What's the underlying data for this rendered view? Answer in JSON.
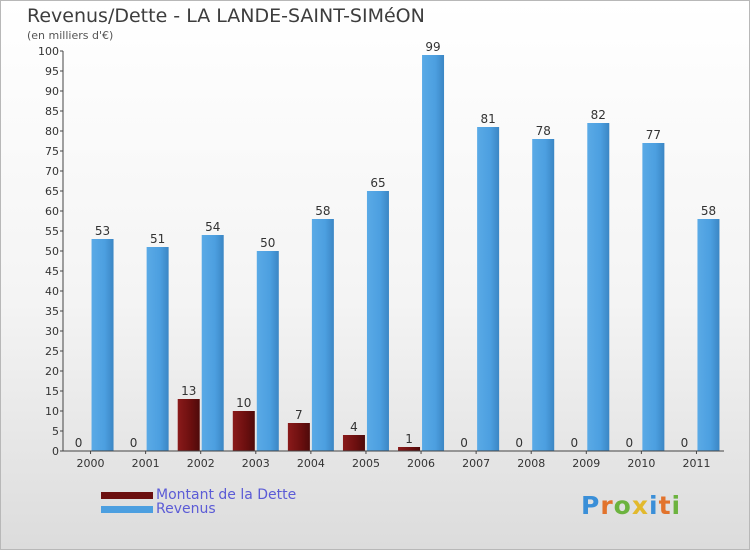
{
  "title": "Revenus/Dette - LA LANDE-SAINT-SIMéON",
  "subtitle": "(en milliers d'€)",
  "brand": "Proxiti",
  "colors": {
    "dette": "#6b0f0f",
    "revenus": "#4c9fe0",
    "axis": "#444444",
    "text": "#333333",
    "legend_text": "#5b5bd6"
  },
  "legend": {
    "dette_label": "Montant de la Dette",
    "revenus_label": "Revenus"
  },
  "chart_data": {
    "type": "bar",
    "title": "Revenus/Dette - LA LANDE-SAINT-SIMéON",
    "ylabel": "(en milliers d'€)",
    "xlabel": "",
    "ylim": [
      0,
      100
    ],
    "yticks": [
      0,
      5,
      10,
      15,
      20,
      25,
      30,
      35,
      40,
      45,
      50,
      55,
      60,
      65,
      70,
      75,
      80,
      85,
      90,
      95,
      100
    ],
    "categories": [
      "2000",
      "2001",
      "2002",
      "2003",
      "2004",
      "2005",
      "2006",
      "2007",
      "2008",
      "2009",
      "2010",
      "2011"
    ],
    "series": [
      {
        "name": "Montant de la Dette",
        "values": [
          0,
          0,
          13,
          10,
          7,
          4,
          1,
          0,
          0,
          0,
          0,
          0
        ]
      },
      {
        "name": "Revenus",
        "values": [
          53,
          51,
          54,
          50,
          58,
          65,
          99,
          81,
          78,
          82,
          77,
          58
        ]
      }
    ],
    "legend_position": "bottom-left"
  }
}
